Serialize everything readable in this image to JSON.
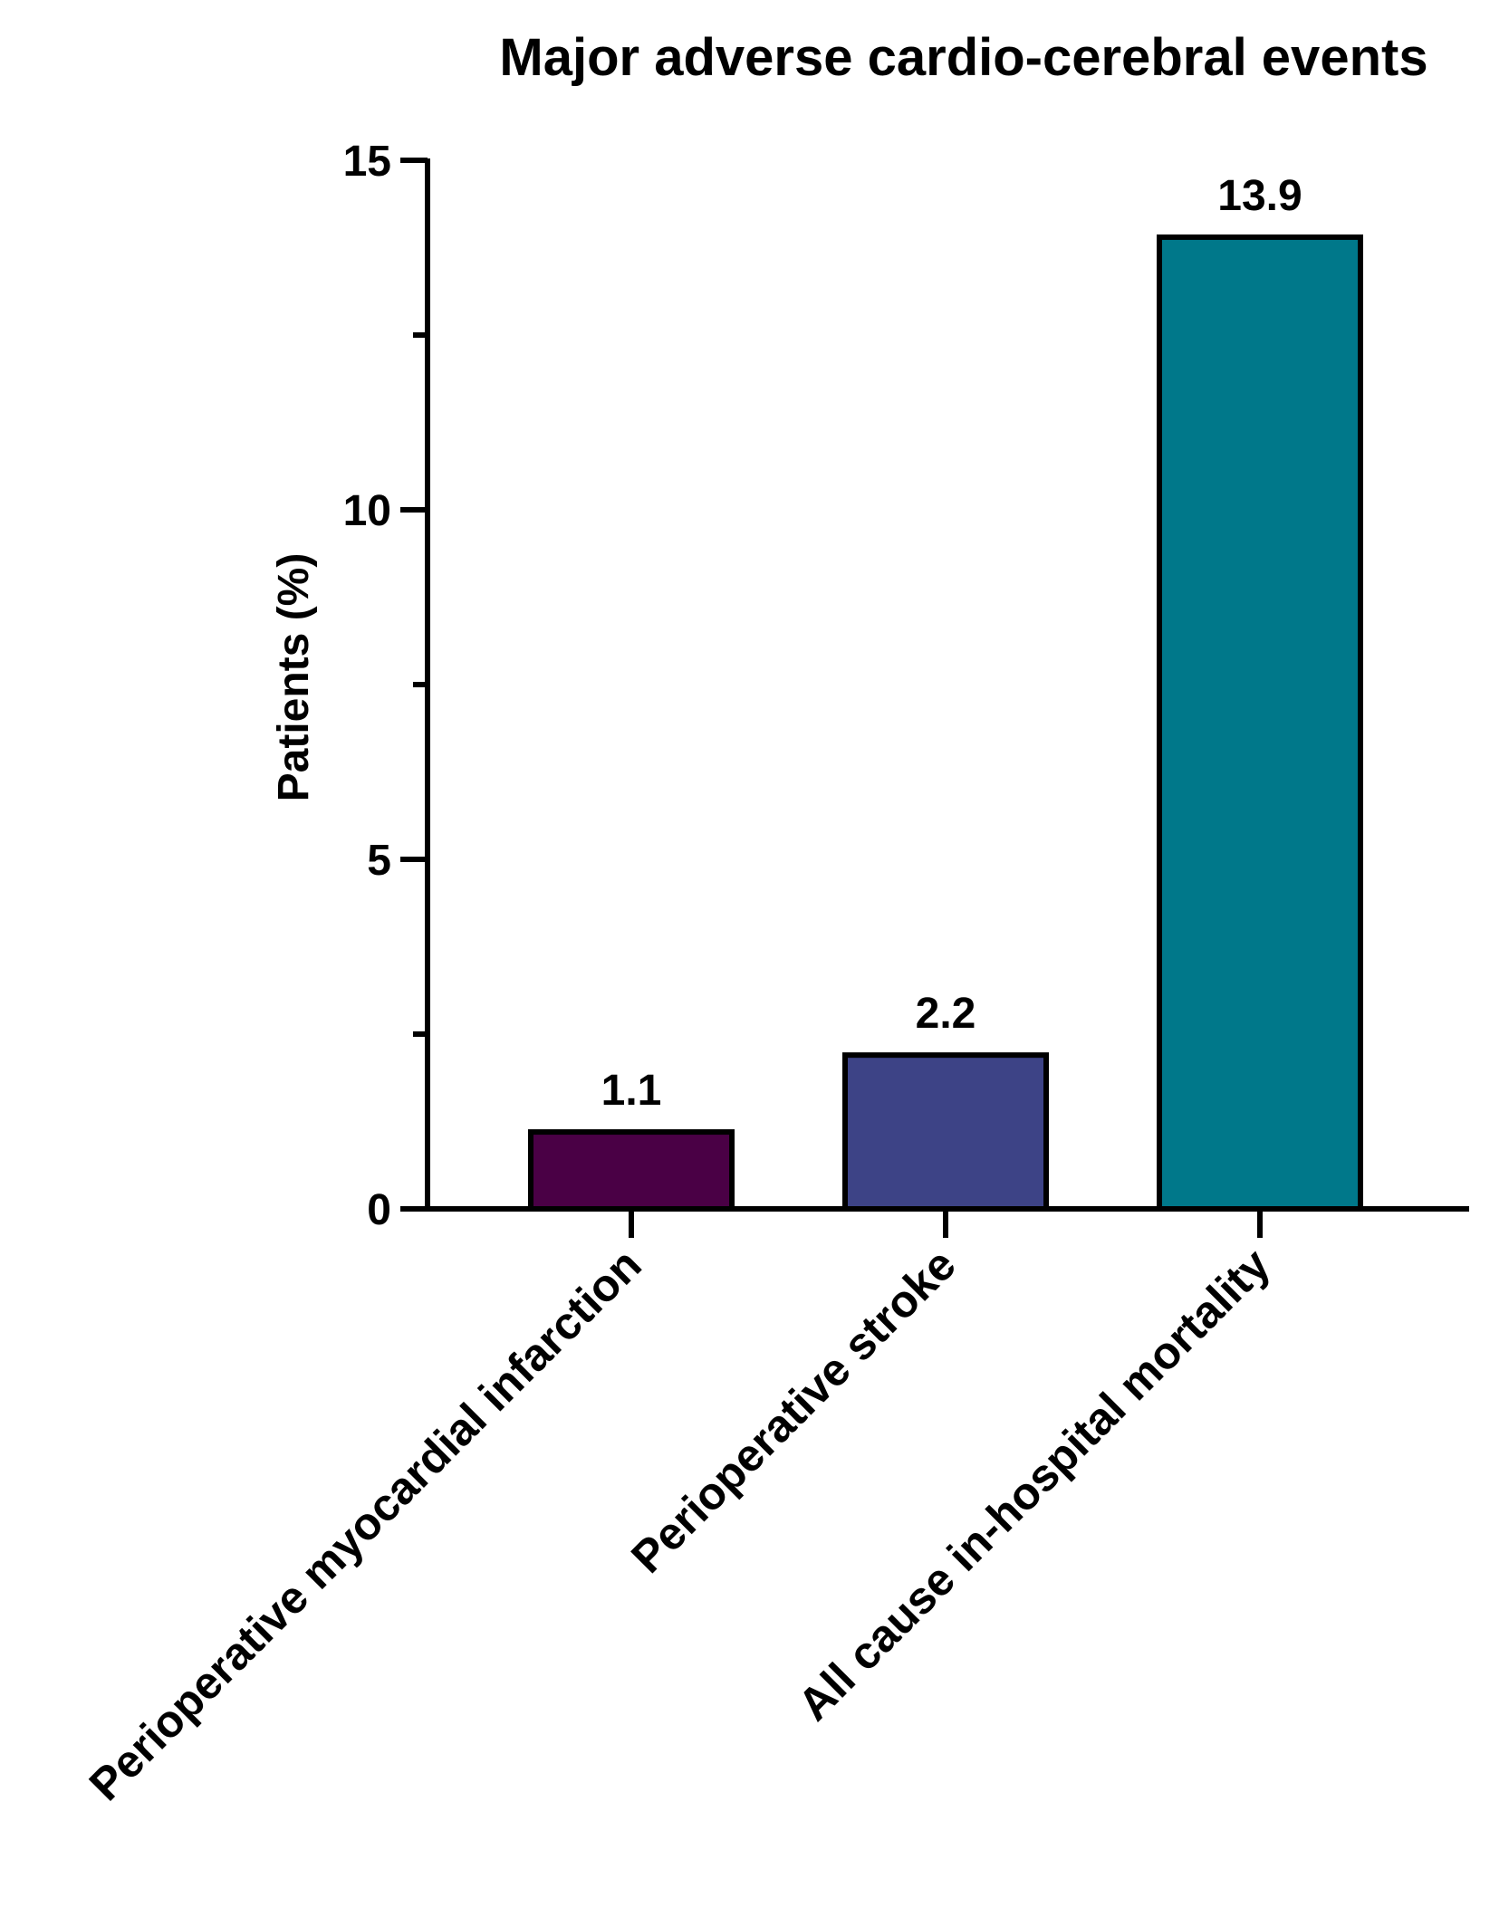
{
  "chart_data": {
    "type": "bar",
    "title": "Major adverse cardio-cerebral events",
    "xlabel": "",
    "ylabel": "Patients (%)",
    "ylim": [
      0,
      15
    ],
    "yticks": [
      "0",
      "5",
      "10",
      "15"
    ],
    "grid": false,
    "categories": [
      "Perioperative myocardial infarction",
      "Perioperative stroke",
      "All cause in-hospital mortality"
    ],
    "values": [
      1.1,
      2.2,
      13.9
    ],
    "value_labels": [
      "1.1",
      "2.2",
      "13.9"
    ],
    "bar_colors": [
      "#4a0045",
      "#3d4386",
      "#00788a"
    ],
    "axis_color": "#000000"
  }
}
